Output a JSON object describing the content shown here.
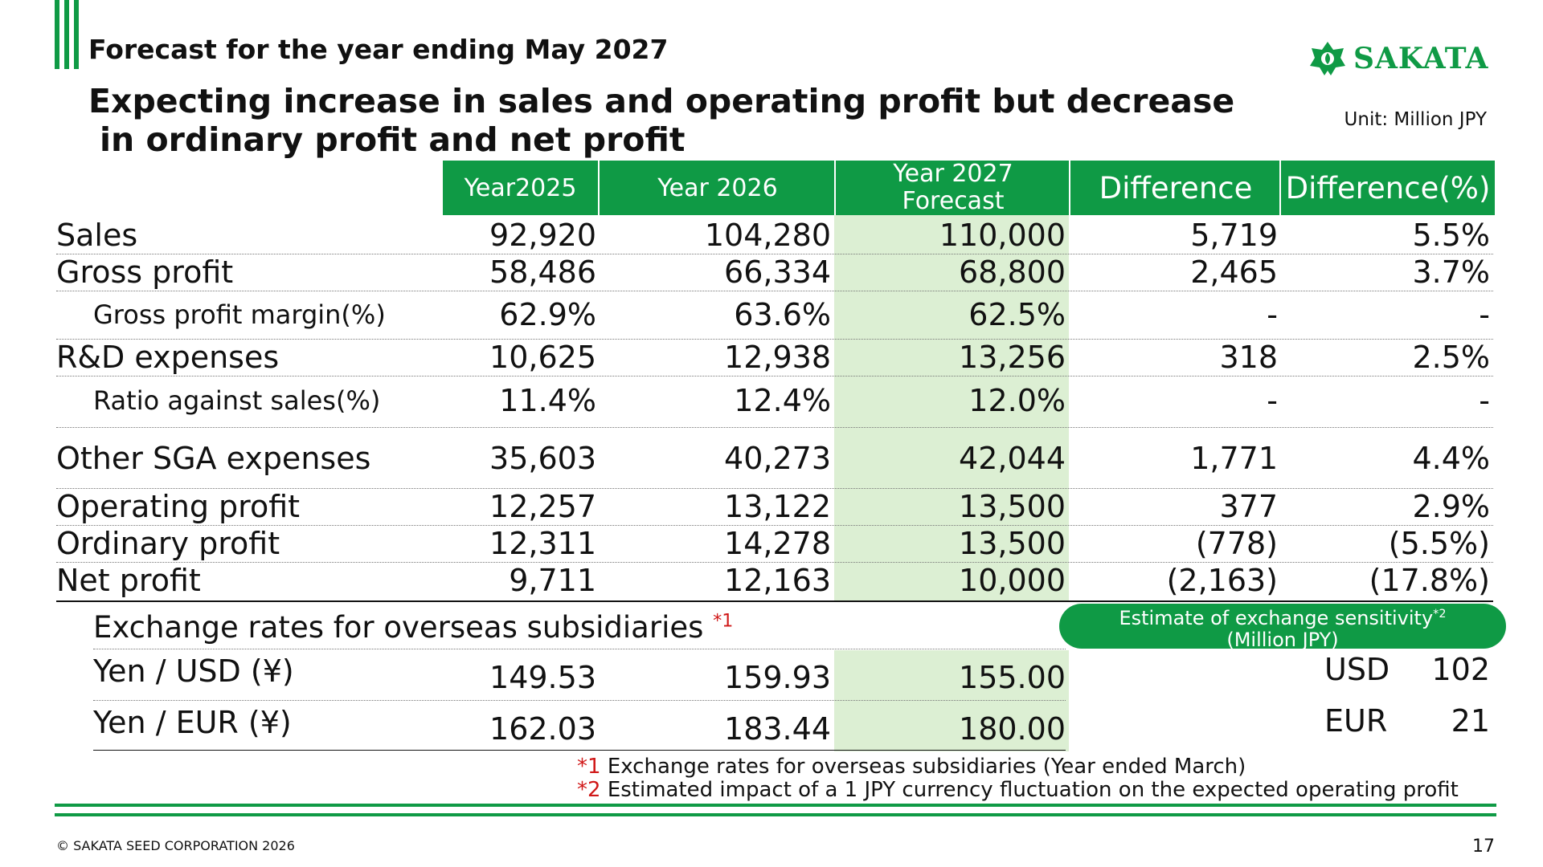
{
  "header": {
    "subtitle": "Forecast for the year ending May 2027",
    "headline_line1": "Expecting increase in sales and operating profit but decrease",
    "headline_line2": "in ordinary profit and net profit",
    "logo_text": "SAKATA",
    "unit": "Unit: Million JPY",
    "brand_color": "#0f9a45"
  },
  "table": {
    "columns": [
      "Year2025",
      "Year 2026",
      "Year 2027 Forecast",
      "Difference",
      "Difference(%)"
    ],
    "col3_line1": "Year 2027",
    "col3_line2": "Forecast",
    "rows": [
      {
        "label": "Sales",
        "values": [
          "92,920",
          "104,280",
          "110,000",
          "5,719",
          "5.5%"
        ]
      },
      {
        "label": "Gross profit",
        "values": [
          "58,486",
          "66,334",
          "68,800",
          "2,465",
          "3.7%"
        ]
      },
      {
        "label": "Gross profit margin(%)",
        "values": [
          "62.9%",
          "63.6%",
          "62.5%",
          "-",
          "-"
        ]
      },
      {
        "label": "R&D expenses",
        "values": [
          "10,625",
          "12,938",
          "13,256",
          "318",
          "2.5%"
        ]
      },
      {
        "label": "Ratio against sales(%)",
        "values": [
          "11.4%",
          "12.4%",
          "12.0%",
          "-",
          "-"
        ]
      },
      {
        "label": "Other SGA expenses",
        "values": [
          "35,603",
          "40,273",
          "42,044",
          "1,771",
          "4.4%"
        ]
      },
      {
        "label": "Operating profit",
        "values": [
          "12,257",
          "13,122",
          "13,500",
          "377",
          "2.9%"
        ]
      },
      {
        "label": "Ordinary profit",
        "values": [
          "12,311",
          "14,278",
          "13,500",
          "(778)",
          "(5.5%)"
        ]
      },
      {
        "label": "Net profit",
        "values": [
          "9,711",
          "12,163",
          "10,000",
          "(2,163)",
          "(17.8%)"
        ]
      }
    ]
  },
  "exchange": {
    "title": "Exchange rates for overseas subsidiaries",
    "title_mark": "*1",
    "rows": [
      {
        "label": "Yen / USD (¥)",
        "values": [
          "149.53",
          "159.93",
          "155.00"
        ]
      },
      {
        "label": "Yen / EUR (¥)",
        "values": [
          "162.03",
          "183.44",
          "180.00"
        ]
      }
    ]
  },
  "sensitivity": {
    "title_line1": "Estimate of exchange sensitivity",
    "title_mark": "*2",
    "title_line2": "(Million JPY)",
    "items": [
      {
        "currency": "USD",
        "value": "102"
      },
      {
        "currency": "EUR",
        "value": "21"
      }
    ]
  },
  "notes": [
    {
      "mark": "*1",
      "text": "Exchange rates for overseas subsidiaries (Year ended March)"
    },
    {
      "mark": "*2",
      "text": "Estimated impact of a 1 JPY currency fluctuation on the expected operating profit"
    }
  ],
  "footer": {
    "copyright": "© SAKATA SEED CORPORATION 2026",
    "page_number": "17"
  }
}
